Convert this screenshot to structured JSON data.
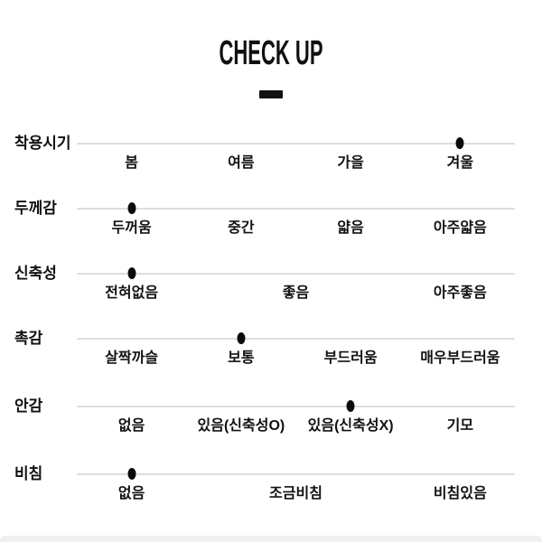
{
  "title": "CHECK UP",
  "colors": {
    "dot": "#0a0a0a",
    "line": "#dedede",
    "text": "#111111",
    "footer_bar": "#f0f0f0"
  },
  "chart_data": {
    "type": "table",
    "title": "CHECK UP",
    "description": "Product attribute check-up scales; each row is an attribute with a black dot marking the selected value on a light gray track",
    "grid": false,
    "legend_position": "none",
    "rows": [
      {
        "attribute": "착용시기",
        "scale": [
          "봄",
          "여름",
          "가을",
          "겨울"
        ],
        "selected": "겨울",
        "selected_index": 3
      },
      {
        "attribute": "두께감",
        "scale": [
          "두꺼움",
          "중간",
          "얇음",
          "아주얇음"
        ],
        "selected": "두꺼움",
        "selected_index": 0
      },
      {
        "attribute": "신축성",
        "scale": [
          "전혀없음",
          "좋음",
          "아주좋음"
        ],
        "selected": "전혀없음",
        "selected_index": 0
      },
      {
        "attribute": "촉감",
        "scale": [
          "살짝까슬",
          "보통",
          "부드러움",
          "매우부드러움"
        ],
        "selected": "보통",
        "selected_index": 1
      },
      {
        "attribute": "안감",
        "scale": [
          "없음",
          "있음(신축성O)",
          "있음(신축성X)",
          "기모"
        ],
        "selected": "있음(신축성X)",
        "selected_index": 2
      },
      {
        "attribute": "비침",
        "scale": [
          "없음",
          "조금비침",
          "비침있음"
        ],
        "selected": "없음",
        "selected_index": 0
      }
    ]
  }
}
